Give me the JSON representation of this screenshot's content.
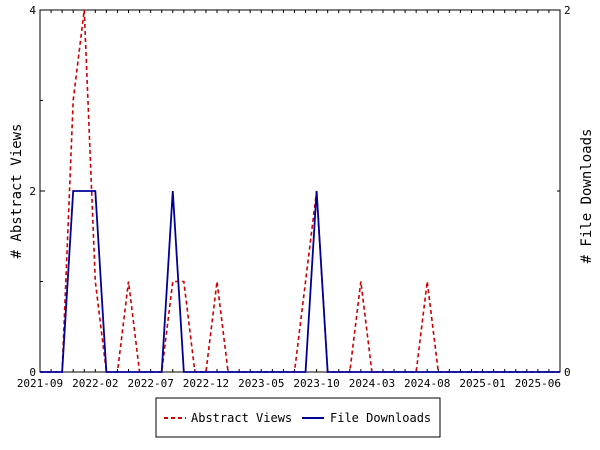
{
  "chart_data": {
    "type": "line",
    "x": [
      "2021-09",
      "2021-10",
      "2021-11",
      "2021-12",
      "2022-01",
      "2022-02",
      "2022-03",
      "2022-04",
      "2022-05",
      "2022-06",
      "2022-07",
      "2022-08",
      "2022-09",
      "2022-10",
      "2022-11",
      "2022-12",
      "2023-01",
      "2023-02",
      "2023-03",
      "2023-04",
      "2023-05",
      "2023-06",
      "2023-07",
      "2023-08",
      "2023-09",
      "2023-10",
      "2023-11",
      "2023-12",
      "2024-01",
      "2024-02",
      "2024-03",
      "2024-04",
      "2024-05",
      "2024-06",
      "2024-07",
      "2024-08",
      "2024-09",
      "2024-10",
      "2024-11",
      "2024-12",
      "2025-01",
      "2025-02",
      "2025-03",
      "2025-04",
      "2025-05",
      "2025-06",
      "2025-07",
      "2025-08"
    ],
    "x_ticks": [
      "2021-09",
      "2022-02",
      "2022-07",
      "2022-12",
      "2023-05",
      "2023-10",
      "2024-03",
      "2024-08",
      "2025-01",
      "2025-06"
    ],
    "series": [
      {
        "name": "Abstract Views",
        "axis": "left",
        "color": "#cc0000",
        "style": "dashed",
        "values": [
          0,
          0,
          0,
          3,
          4,
          1,
          0,
          0,
          1,
          0,
          0,
          0,
          1,
          1,
          0,
          0,
          1,
          0,
          0,
          0,
          0,
          0,
          0,
          0,
          1,
          2,
          0,
          0,
          0,
          1,
          0,
          0,
          0,
          0,
          0,
          1,
          0,
          0,
          0,
          0,
          0,
          0,
          0,
          0,
          0,
          0,
          0,
          0
        ]
      },
      {
        "name": "File Downloads",
        "axis": "right",
        "color": "#000099",
        "style": "solid",
        "values": [
          0,
          0,
          0,
          1,
          1,
          1,
          0,
          0,
          0,
          0,
          0,
          0,
          1,
          0,
          0,
          0,
          0,
          0,
          0,
          0,
          0,
          0,
          0,
          0,
          0,
          1,
          0,
          0,
          0,
          0,
          0,
          0,
          0,
          0,
          0,
          0,
          0,
          0,
          0,
          0,
          0,
          0,
          0,
          0,
          0,
          0,
          0,
          0
        ]
      }
    ],
    "ylabel_left": "# Abstract Views",
    "ylabel_right": "# File Downloads",
    "ylim_left": [
      0,
      4
    ],
    "ylim_right": [
      0,
      2
    ],
    "yticks_left": [
      "0",
      "2",
      "4"
    ],
    "yticks_right": [
      "0",
      "2"
    ],
    "legend_position": "bottom-center",
    "grid": false
  }
}
